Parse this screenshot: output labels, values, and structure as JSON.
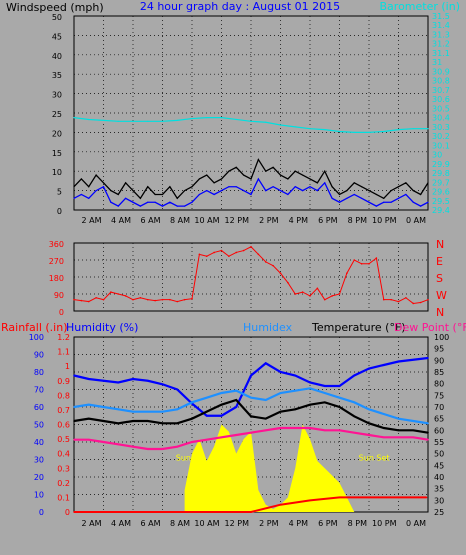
{
  "chart_data": [
    {
      "type": "line",
      "title": "24 hour graph day : August 01 2015",
      "left_label": "Windspeed (mph)",
      "right_label": "Barometer (in)",
      "x_ticks": [
        "2 AM",
        "4 AM",
        "6 AM",
        "8 AM",
        "10 AM",
        "12 PM",
        "2 PM",
        "4 PM",
        "6 PM",
        "8 PM",
        "10 PM",
        "0 AM"
      ],
      "y_left": {
        "ticks": [
          0,
          5,
          10,
          15,
          20,
          25,
          30,
          35,
          40,
          45,
          50
        ],
        "range": [
          0,
          50
        ]
      },
      "y_right": {
        "ticks": [
          "29.4",
          "29.5",
          "29.6",
          "29.7",
          "29.8",
          "29.9",
          "30",
          "30.1",
          "30.2",
          "30.3",
          "30.4",
          "30.5",
          "30.6",
          "30.7",
          "30.8",
          "30.9",
          "31",
          "31.1",
          "31.2",
          "31.3",
          "31.4",
          "31.5"
        ],
        "range": [
          29.4,
          31.5
        ]
      },
      "grid": true,
      "series": [
        {
          "name": "Windspeed gust",
          "color": "#000000",
          "x": [
            0,
            0.5,
            1,
            1.5,
            2,
            2.5,
            3,
            3.5,
            4,
            4.5,
            5,
            5.5,
            6,
            6.5,
            7,
            7.5,
            8,
            8.5,
            9,
            9.5,
            10,
            10.5,
            11,
            11.5,
            12,
            12.5,
            13,
            13.5,
            14,
            14.5,
            15,
            15.5,
            16,
            16.5,
            17,
            17.5,
            18,
            18.5,
            19,
            19.5,
            20,
            20.5,
            21,
            21.5,
            22,
            22.5,
            23,
            23.5,
            24
          ],
          "y": [
            6,
            8,
            6,
            9,
            7,
            5,
            4,
            7,
            5,
            3,
            6,
            4,
            4,
            6,
            3,
            5,
            6,
            8,
            9,
            7,
            8,
            10,
            11,
            9,
            8,
            13,
            10,
            11,
            9,
            8,
            10,
            9,
            8,
            7,
            10,
            6,
            4,
            5,
            7,
            6,
            5,
            4,
            3,
            5,
            6,
            7,
            5,
            4,
            7
          ]
        },
        {
          "name": "Windspeed avg",
          "color": "#0000ff",
          "x": [
            0,
            0.5,
            1,
            1.5,
            2,
            2.5,
            3,
            3.5,
            4,
            4.5,
            5,
            5.5,
            6,
            6.5,
            7,
            7.5,
            8,
            8.5,
            9,
            9.5,
            10,
            10.5,
            11,
            11.5,
            12,
            12.5,
            13,
            13.5,
            14,
            14.5,
            15,
            15.5,
            16,
            16.5,
            17,
            17.5,
            18,
            18.5,
            19,
            19.5,
            20,
            20.5,
            21,
            21.5,
            22,
            22.5,
            23,
            23.5,
            24
          ],
          "y": [
            3,
            4,
            3,
            5,
            6,
            2,
            1,
            3,
            2,
            1,
            2,
            2,
            1,
            2,
            1,
            1,
            2,
            4,
            5,
            4,
            5,
            6,
            6,
            5,
            4,
            8,
            5,
            6,
            5,
            4,
            6,
            5,
            6,
            5,
            7,
            3,
            2,
            3,
            4,
            3,
            2,
            1,
            2,
            2,
            3,
            4,
            2,
            1,
            2
          ]
        },
        {
          "name": "Barometer",
          "color": "#00e0e0",
          "axis": "right",
          "x": [
            0,
            1,
            2,
            3,
            4,
            5,
            6,
            7,
            8,
            9,
            10,
            11,
            12,
            13,
            14,
            15,
            16,
            17,
            18,
            19,
            20,
            21,
            22,
            23,
            24
          ],
          "y": [
            30.4,
            30.38,
            30.37,
            30.36,
            30.36,
            30.36,
            30.36,
            30.37,
            30.39,
            30.4,
            30.4,
            30.38,
            30.36,
            30.35,
            30.32,
            30.3,
            30.28,
            30.27,
            30.25,
            30.24,
            30.24,
            30.25,
            30.27,
            30.28,
            30.28
          ]
        }
      ]
    },
    {
      "type": "scatter",
      "title": "",
      "x_ticks": [
        "2 AM",
        "4 AM",
        "6 AM",
        "8 AM",
        "10 AM",
        "12 PM",
        "2 PM",
        "4 PM",
        "6 PM",
        "8 PM",
        "10 PM",
        "0 AM"
      ],
      "y_left": {
        "ticks": [
          0,
          90,
          180,
          270,
          360
        ],
        "range": [
          0,
          360
        ]
      },
      "y_right": {
        "ticks": [
          "N",
          "E",
          "S",
          "W",
          "N"
        ]
      },
      "series": [
        {
          "name": "Wind direction",
          "color": "#ff0000",
          "x": [
            0,
            0.5,
            1,
            1.5,
            2,
            2.5,
            3,
            3.5,
            4,
            4.5,
            5,
            5.5,
            6,
            6.5,
            7,
            7.5,
            8,
            8.5,
            9,
            9.5,
            10,
            10.5,
            11,
            11.5,
            12,
            12.5,
            13,
            13.5,
            14,
            14.5,
            15,
            15.5,
            16,
            16.5,
            17,
            17.5,
            18,
            18.5,
            19,
            19.5,
            20,
            20.5,
            21,
            21.5,
            22,
            22.5,
            23,
            23.5,
            24
          ],
          "y": [
            60,
            55,
            50,
            70,
            60,
            100,
            90,
            80,
            60,
            70,
            60,
            55,
            60,
            60,
            50,
            60,
            65,
            300,
            290,
            310,
            320,
            290,
            310,
            320,
            340,
            300,
            260,
            240,
            200,
            150,
            90,
            100,
            80,
            120,
            60,
            80,
            90,
            200,
            270,
            250,
            250,
            280,
            60,
            60,
            50,
            70,
            40,
            45,
            60
          ]
        }
      ]
    },
    {
      "type": "line",
      "title": "",
      "legend": [
        "Rainfall (.in)",
        "Humidity (%)",
        "Humidex",
        "Temperature (°F)",
        "Dew Point (°F)"
      ],
      "x_ticks": [
        "2 AM",
        "4 AM",
        "6 AM",
        "8 AM",
        "10 AM",
        "12 PM",
        "2 PM",
        "4 PM",
        "6 PM",
        "8 PM",
        "10 PM",
        "0 AM"
      ],
      "y_rain": {
        "ticks": [
          "0",
          "0.1",
          "0.2",
          "0.3",
          "0.4",
          "0.5",
          "0.6",
          "0.7",
          "0.8",
          "0.9",
          "1",
          "1.1",
          "1.2"
        ],
        "range": [
          0,
          1.2
        ]
      },
      "y_hum": {
        "ticks": [
          0,
          10,
          20,
          30,
          40,
          50,
          60,
          70,
          80,
          90,
          100
        ],
        "range": [
          0,
          100
        ]
      },
      "y_temp": {
        "ticks": [
          25,
          30,
          35,
          40,
          45,
          50,
          55,
          60,
          65,
          70,
          75,
          80,
          85,
          90,
          95,
          100
        ],
        "range": [
          25,
          100
        ]
      },
      "annotations": [
        "Sun Up",
        "Sun Set"
      ],
      "series": [
        {
          "name": "Humidity",
          "color": "#0000ff",
          "x": [
            0,
            1,
            2,
            3,
            4,
            5,
            6,
            7,
            8,
            9,
            10,
            11,
            12,
            13,
            14,
            15,
            16,
            17,
            18,
            19,
            20,
            21,
            22,
            23,
            24
          ],
          "y": [
            78,
            76,
            75,
            74,
            76,
            75,
            73,
            70,
            62,
            55,
            55,
            60,
            78,
            85,
            80,
            78,
            74,
            72,
            72,
            78,
            82,
            84,
            86,
            87,
            88
          ]
        },
        {
          "name": "Humidex",
          "color": "#1e90ff",
          "x": [
            0,
            1,
            2,
            3,
            4,
            5,
            6,
            7,
            8,
            9,
            10,
            11,
            12,
            13,
            14,
            15,
            16,
            17,
            18,
            19,
            20,
            21,
            22,
            23,
            24
          ],
          "y": [
            70,
            71,
            70,
            69,
            68,
            68,
            68,
            69,
            72,
            74,
            76,
            77,
            74,
            73,
            76,
            77,
            78,
            76,
            74,
            72,
            69,
            67,
            65,
            64,
            63
          ]
        },
        {
          "name": "Temperature",
          "color": "#000000",
          "x": [
            0,
            1,
            2,
            3,
            4,
            5,
            6,
            7,
            8,
            9,
            10,
            11,
            12,
            13,
            14,
            15,
            16,
            17,
            18,
            19,
            20,
            21,
            22,
            23,
            24
          ],
          "y": [
            64,
            65,
            64,
            63,
            64,
            64,
            63,
            63,
            65,
            68,
            71,
            73,
            66,
            65,
            68,
            69,
            71,
            72,
            70,
            66,
            63,
            61,
            60,
            60,
            59
          ]
        },
        {
          "name": "Dew Point",
          "color": "#ff1493",
          "x": [
            0,
            1,
            2,
            3,
            4,
            5,
            6,
            7,
            8,
            9,
            10,
            11,
            12,
            13,
            14,
            15,
            16,
            17,
            18,
            19,
            20,
            21,
            22,
            23,
            24
          ],
          "y": [
            56,
            56,
            55,
            54,
            53,
            52,
            52,
            53,
            55,
            56,
            57,
            58,
            59,
            60,
            61,
            61,
            61,
            60,
            60,
            59,
            58,
            57,
            57,
            57,
            56
          ]
        },
        {
          "name": "Rainfall",
          "color": "#ff0000",
          "x": [
            0,
            6,
            8,
            10,
            12,
            14,
            16,
            18,
            20,
            22,
            23.9
          ],
          "y": [
            0,
            0,
            0,
            0,
            0,
            0.05,
            0.08,
            0.1,
            0.1,
            0.1,
            0.1
          ]
        },
        {
          "name": "Solar",
          "color": "#ffff00",
          "x": [
            7.5,
            8,
            8.5,
            9,
            9.5,
            10,
            10.5,
            11,
            11.5,
            12,
            12.5,
            13,
            13.5,
            14,
            14.5,
            15,
            15.5,
            16,
            16.5,
            17,
            17.5,
            18,
            18.5,
            19
          ],
          "y": [
            0.15,
            0.4,
            0.5,
            0.35,
            0.45,
            0.6,
            0.55,
            0.4,
            0.5,
            0.55,
            0.15,
            0.05,
            0.02,
            0.05,
            0.1,
            0.3,
            0.6,
            0.5,
            0.35,
            0.3,
            0.25,
            0.2,
            0.1,
            0
          ]
        }
      ]
    }
  ]
}
